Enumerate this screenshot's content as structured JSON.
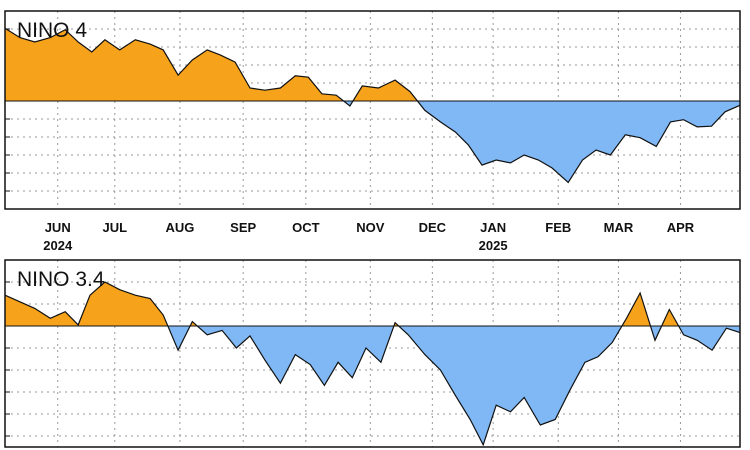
{
  "chart_data": [
    {
      "type": "area",
      "title": "NINO 4",
      "xlim": [
        0,
        11.85
      ],
      "xticks": [
        {
          "value": 0.85,
          "label": "JUN"
        },
        {
          "value": 1.77,
          "label": "JUL"
        },
        {
          "value": 2.82,
          "label": "AUG"
        },
        {
          "value": 3.84,
          "label": "SEP"
        },
        {
          "value": 4.85,
          "label": "OCT"
        },
        {
          "value": 5.89,
          "label": "NOV"
        },
        {
          "value": 6.89,
          "label": "DEC"
        },
        {
          "value": 7.87,
          "label": "JAN"
        },
        {
          "value": 8.92,
          "label": "FEB"
        },
        {
          "value": 9.89,
          "label": "MAR"
        },
        {
          "value": 10.89,
          "label": "APR"
        }
      ],
      "year_ticks": [
        {
          "value": 0.85,
          "label": "2024"
        },
        {
          "value": 7.87,
          "label": "2025"
        }
      ],
      "ylim": [
        -1.5,
        1.25
      ],
      "yticks": [
        -1.5,
        -1.25,
        -1,
        -0.75,
        -0.5,
        -0.25,
        0,
        0.25,
        0.5,
        0.75,
        1,
        1.25
      ],
      "grid": true,
      "positive_color": "#f7a21b",
      "negative_color": "#7fb8f4",
      "x": [
        0,
        0.24,
        0.48,
        0.73,
        0.97,
        1.18,
        1.4,
        1.61,
        1.85,
        2.1,
        2.34,
        2.55,
        2.79,
        3.02,
        3.26,
        3.47,
        3.71,
        3.95,
        4.19,
        4.44,
        4.68,
        4.89,
        5.11,
        5.34,
        5.56,
        5.76,
        6.02,
        6.29,
        6.53,
        6.77,
        7.02,
        7.26,
        7.47,
        7.69,
        7.92,
        8.15,
        8.37,
        8.6,
        8.82,
        9.08,
        9.31,
        9.53,
        9.76,
        10.0,
        10.24,
        10.5,
        10.73,
        10.94,
        11.16,
        11.39,
        11.61,
        11.85
      ],
      "values": [
        1.01,
        0.88,
        0.82,
        0.88,
        0.99,
        0.82,
        0.68,
        0.85,
        0.71,
        0.85,
        0.79,
        0.71,
        0.36,
        0.57,
        0.71,
        0.64,
        0.54,
        0.18,
        0.15,
        0.18,
        0.35,
        0.33,
        0.1,
        0.08,
        -0.07,
        0.21,
        0.18,
        0.29,
        0.13,
        -0.13,
        -0.29,
        -0.43,
        -0.61,
        -0.89,
        -0.82,
        -0.86,
        -0.75,
        -0.82,
        -0.93,
        -1.13,
        -0.82,
        -0.68,
        -0.75,
        -0.47,
        -0.51,
        -0.63,
        -0.29,
        -0.26,
        -0.36,
        -0.35,
        -0.15,
        -0.06
      ]
    },
    {
      "type": "area",
      "title": "NINO 3.4",
      "xlim": [
        0,
        11.85
      ],
      "xticks": [
        0.85,
        1.77,
        2.82,
        3.84,
        4.85,
        5.89,
        6.89,
        7.87,
        8.92,
        9.89,
        10.89
      ],
      "ylim": [
        -1.1,
        0.6
      ],
      "yticks": [
        -1,
        -0.8,
        -0.6,
        -0.4,
        -0.2,
        0,
        0.2,
        0.4,
        0.6
      ],
      "grid": true,
      "positive_color": "#f7a21b",
      "negative_color": "#7fb8f4",
      "x": [
        0,
        0.24,
        0.48,
        0.73,
        0.97,
        1.18,
        1.37,
        1.61,
        1.85,
        2.1,
        2.34,
        2.55,
        2.79,
        3.02,
        3.26,
        3.5,
        3.73,
        3.95,
        4.19,
        4.44,
        4.68,
        4.92,
        5.15,
        5.37,
        5.6,
        5.82,
        6.06,
        6.29,
        6.5,
        6.77,
        7.02,
        7.26,
        7.5,
        7.71,
        7.92,
        8.15,
        8.37,
        8.63,
        8.87,
        9.11,
        9.35,
        9.56,
        9.79,
        10.02,
        10.24,
        10.48,
        10.71,
        10.94,
        11.16,
        11.4,
        11.63,
        11.85
      ],
      "values": [
        0.28,
        0.22,
        0.16,
        0.07,
        0.13,
        0.01,
        0.28,
        0.4,
        0.33,
        0.28,
        0.25,
        0.1,
        -0.22,
        0.04,
        -0.08,
        -0.04,
        -0.2,
        -0.09,
        -0.31,
        -0.52,
        -0.26,
        -0.35,
        -0.54,
        -0.33,
        -0.47,
        -0.2,
        -0.33,
        0.03,
        -0.08,
        -0.26,
        -0.4,
        -0.63,
        -0.85,
        -1.08,
        -0.72,
        -0.78,
        -0.65,
        -0.9,
        -0.85,
        -0.58,
        -0.33,
        -0.28,
        -0.15,
        0.07,
        0.3,
        -0.13,
        0.15,
        -0.08,
        -0.13,
        -0.22,
        -0.02,
        -0.06
      ]
    }
  ]
}
